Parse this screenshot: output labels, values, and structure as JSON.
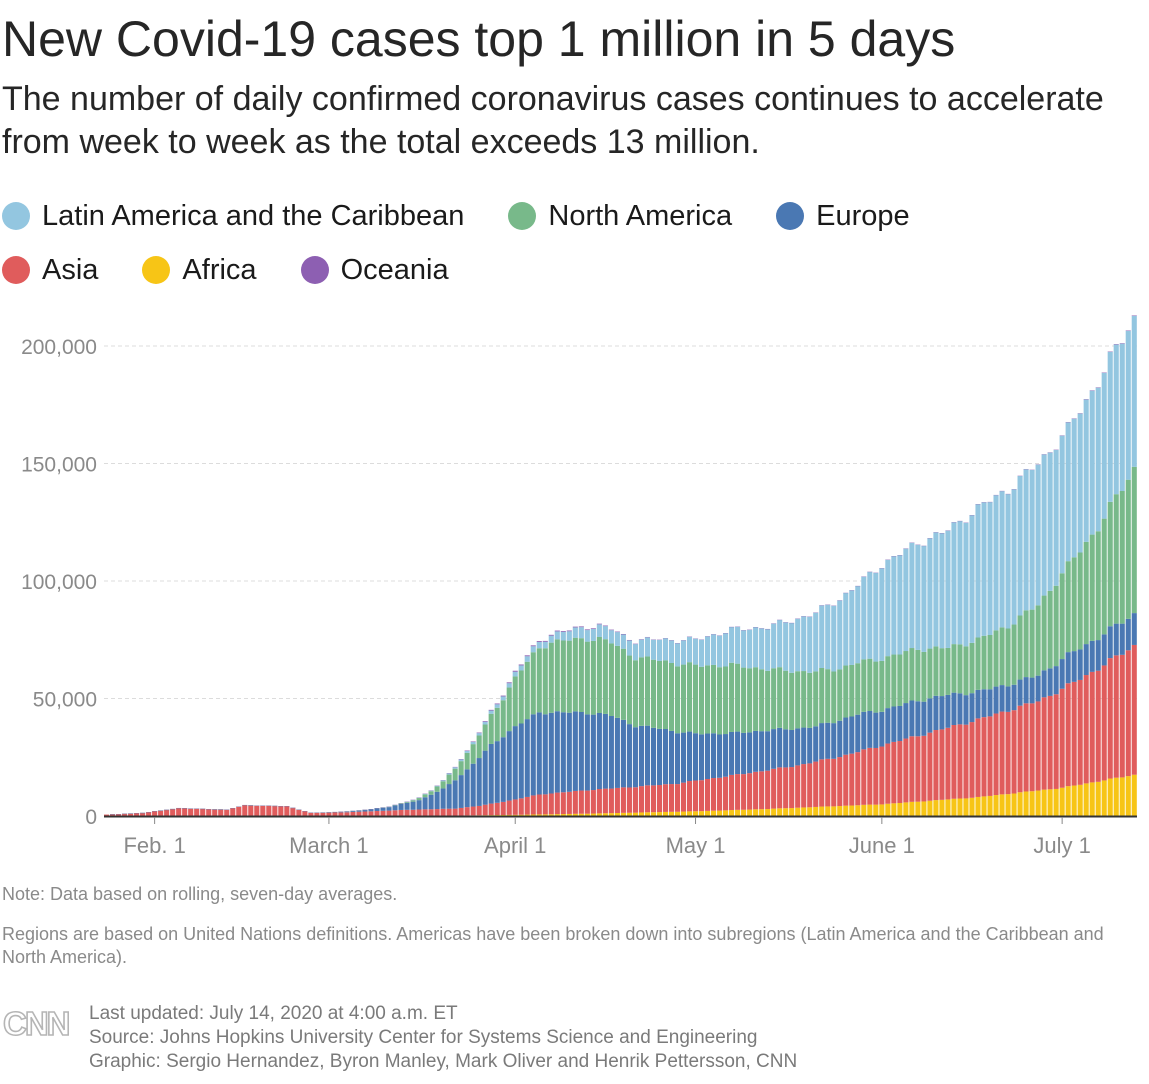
{
  "header": {
    "title": "New Covid-19 cases top 1 million in 5 days",
    "subtitle": "The number of daily confirmed coronavirus cases continues to accelerate from week to week as the total exceeds 13 million."
  },
  "legend": {
    "row1": [
      {
        "label": "Latin America and the Caribbean",
        "color": "#93c6e0"
      },
      {
        "label": "North America",
        "color": "#78b98a"
      },
      {
        "label": "Europe",
        "color": "#4a78b3"
      }
    ],
    "row2": [
      {
        "label": "Asia",
        "color": "#e05c5c"
      },
      {
        "label": "Africa",
        "color": "#f7c516"
      },
      {
        "label": "Oceania",
        "color": "#8d5fb2"
      }
    ]
  },
  "chart_data": {
    "type": "bar",
    "stacked": true,
    "y_ticks": [
      {
        "label": "0",
        "value": 0
      },
      {
        "label": "50,000",
        "value": 50000
      },
      {
        "label": "100,000",
        "value": 100000
      },
      {
        "label": "150,000",
        "value": 150000
      },
      {
        "label": "200,000",
        "value": 200000
      }
    ],
    "x_ticks": [
      {
        "label": "Feb. 1",
        "day": 8
      },
      {
        "label": "March 1",
        "day": 37
      },
      {
        "label": "April 1",
        "day": 68
      },
      {
        "label": "May 1",
        "day": 98
      },
      {
        "label": "June 1",
        "day": 129
      },
      {
        "label": "July 1",
        "day": 159
      }
    ],
    "x_range": [
      "Jan. 24",
      "July 13"
    ],
    "ylim": [
      0,
      215000
    ],
    "grid": true,
    "series_keyframes": {
      "Africa": [
        [
          0,
          0
        ],
        [
          57,
          150
        ],
        [
          68,
          500
        ],
        [
          80,
          1000
        ],
        [
          98,
          2000
        ],
        [
          110,
          3000
        ],
        [
          129,
          5000
        ],
        [
          145,
          8000
        ],
        [
          159,
          12000
        ],
        [
          171,
          17500
        ]
      ],
      "Asia": [
        [
          0,
          600
        ],
        [
          6,
          1300
        ],
        [
          12,
          3300
        ],
        [
          20,
          2600
        ],
        [
          23,
          4500
        ],
        [
          30,
          4000
        ],
        [
          34,
          1200
        ],
        [
          40,
          1500
        ],
        [
          50,
          2500
        ],
        [
          58,
          3000
        ],
        [
          62,
          4000
        ],
        [
          68,
          6500
        ],
        [
          72,
          8500
        ],
        [
          80,
          10000
        ],
        [
          88,
          11000
        ],
        [
          95,
          12000
        ],
        [
          98,
          13000
        ],
        [
          105,
          15000
        ],
        [
          115,
          18000
        ],
        [
          122,
          21000
        ],
        [
          129,
          25000
        ],
        [
          135,
          28000
        ],
        [
          145,
          33000
        ],
        [
          155,
          38000
        ],
        [
          165,
          48000
        ],
        [
          171,
          55000
        ]
      ],
      "Europe": [
        [
          0,
          0
        ],
        [
          37,
          100
        ],
        [
          42,
          500
        ],
        [
          47,
          1500
        ],
        [
          52,
          4000
        ],
        [
          56,
          8500
        ],
        [
          60,
          16000
        ],
        [
          64,
          25000
        ],
        [
          68,
          31000
        ],
        [
          72,
          35000
        ],
        [
          76,
          34000
        ],
        [
          80,
          33000
        ],
        [
          84,
          31000
        ],
        [
          88,
          26000
        ],
        [
          92,
          24000
        ],
        [
          98,
          20000
        ],
        [
          104,
          18000
        ],
        [
          110,
          17000
        ],
        [
          118,
          15000
        ],
        [
          125,
          16000
        ],
        [
          129,
          15000
        ],
        [
          135,
          15000
        ],
        [
          140,
          14000
        ],
        [
          145,
          12000
        ],
        [
          150,
          11000
        ],
        [
          155,
          11000
        ],
        [
          160,
          13000
        ],
        [
          171,
          13500
        ]
      ],
      "North America": [
        [
          0,
          0
        ],
        [
          44,
          50
        ],
        [
          50,
          300
        ],
        [
          54,
          1500
        ],
        [
          56,
          3000
        ],
        [
          60,
          7000
        ],
        [
          63,
          11000
        ],
        [
          66,
          16000
        ],
        [
          68,
          21000
        ],
        [
          71,
          26000
        ],
        [
          74,
          30000
        ],
        [
          78,
          31000
        ],
        [
          82,
          32000
        ],
        [
          86,
          30000
        ],
        [
          88,
          29000
        ],
        [
          92,
          29000
        ],
        [
          98,
          29000
        ],
        [
          104,
          29000
        ],
        [
          110,
          26000
        ],
        [
          116,
          24000
        ],
        [
          122,
          22000
        ],
        [
          129,
          22000
        ],
        [
          135,
          22000
        ],
        [
          140,
          20000
        ],
        [
          145,
          22000
        ],
        [
          150,
          25000
        ],
        [
          155,
          30000
        ],
        [
          160,
          38000
        ],
        [
          165,
          47000
        ],
        [
          171,
          62000
        ]
      ],
      "Latin America and the Caribbean": [
        [
          0,
          0
        ],
        [
          45,
          0
        ],
        [
          55,
          300
        ],
        [
          62,
          1000
        ],
        [
          68,
          2000
        ],
        [
          74,
          3000
        ],
        [
          80,
          5000
        ],
        [
          86,
          6000
        ],
        [
          92,
          9000
        ],
        [
          98,
          11000
        ],
        [
          104,
          15000
        ],
        [
          110,
          18000
        ],
        [
          118,
          25000
        ],
        [
          125,
          33000
        ],
        [
          129,
          40000
        ],
        [
          135,
          45000
        ],
        [
          140,
          50000
        ],
        [
          145,
          56000
        ],
        [
          150,
          58000
        ],
        [
          155,
          60000
        ],
        [
          160,
          58000
        ],
        [
          165,
          62000
        ],
        [
          171,
          64000
        ]
      ],
      "Oceania": [
        [
          0,
          0
        ],
        [
          50,
          10
        ],
        [
          60,
          200
        ],
        [
          68,
          400
        ],
        [
          80,
          300
        ],
        [
          98,
          30
        ],
        [
          140,
          50
        ],
        [
          171,
          200
        ]
      ]
    },
    "series_order": [
      "Africa",
      "Asia",
      "Europe",
      "North America",
      "Latin America and the Caribbean",
      "Oceania"
    ]
  },
  "notes": {
    "note1": "Note: Data based on rolling, seven-day averages.",
    "note2": "Regions are based on United Nations definitions. Americas have been broken down into subregions (Latin America and the Caribbean and North America)."
  },
  "footer": {
    "logo_text": "CNN",
    "last_updated": "Last updated: July 14, 2020 at 4:00 a.m. ET",
    "source": "Source: Johns Hopkins University Center for Systems Science and Engineering",
    "graphic": "Graphic: Sergio Hernandez, Byron Manley, Mark Oliver and Henrik Pettersson, CNN"
  }
}
